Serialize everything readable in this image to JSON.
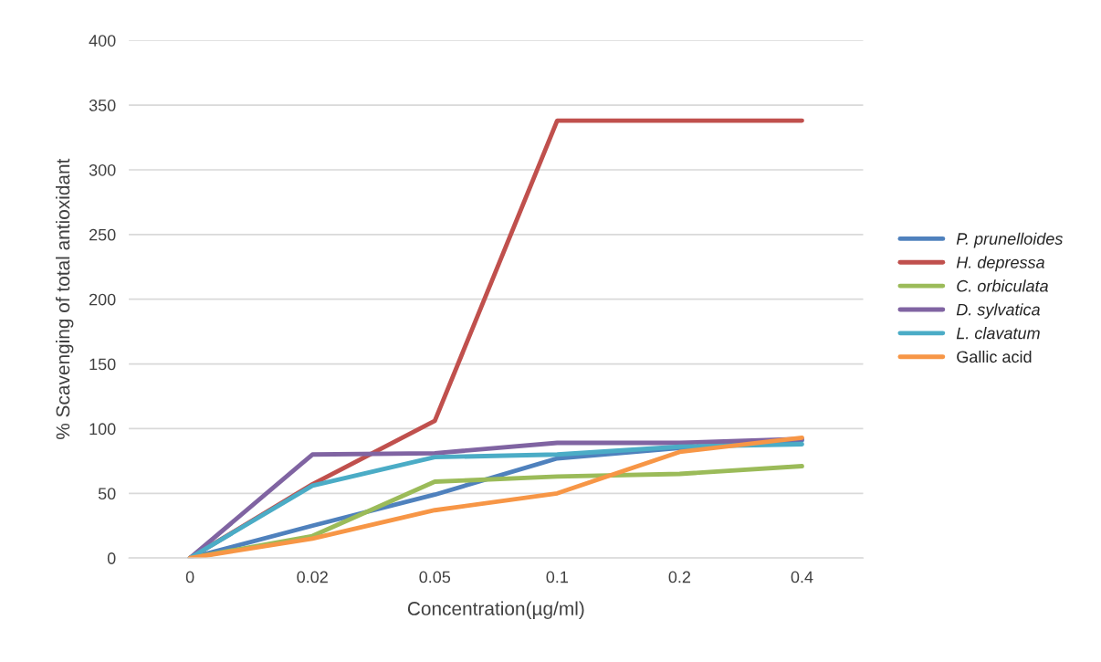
{
  "chart_data": {
    "type": "line",
    "xlabel": "Concentration(µg/ml)",
    "ylabel": "% Scavenging of total antioxidant",
    "categories": [
      "0",
      "0.02",
      "0.05",
      "0.1",
      "0.2",
      "0.4"
    ],
    "series": [
      {
        "name": "P. prunelloides",
        "color": "#4f81bd",
        "values": [
          0,
          25,
          49,
          77,
          85,
          91
        ]
      },
      {
        "name": "H. depressa",
        "color": "#c0504d",
        "values": [
          0,
          57,
          106,
          338,
          338,
          338
        ]
      },
      {
        "name": "C. orbiculata",
        "color": "#9bbb59",
        "values": [
          0,
          17,
          59,
          63,
          65,
          71
        ]
      },
      {
        "name": "D. sylvatica",
        "color": "#8064a2",
        "values": [
          0,
          80,
          81,
          89,
          89,
          92
        ]
      },
      {
        "name": "L. clavatum",
        "color": "#4bacc6",
        "values": [
          0,
          56,
          78,
          80,
          86,
          88
        ]
      },
      {
        "name": "Gallic acid",
        "color": "#f79646",
        "values": [
          0,
          15,
          37,
          50,
          82,
          93
        ]
      }
    ],
    "ylim": [
      0,
      400
    ],
    "yticks": [
      0,
      50,
      100,
      150,
      200,
      250,
      300,
      350,
      400
    ],
    "grid": "y",
    "legend": "right",
    "marker": "none",
    "line_style": "solid"
  }
}
